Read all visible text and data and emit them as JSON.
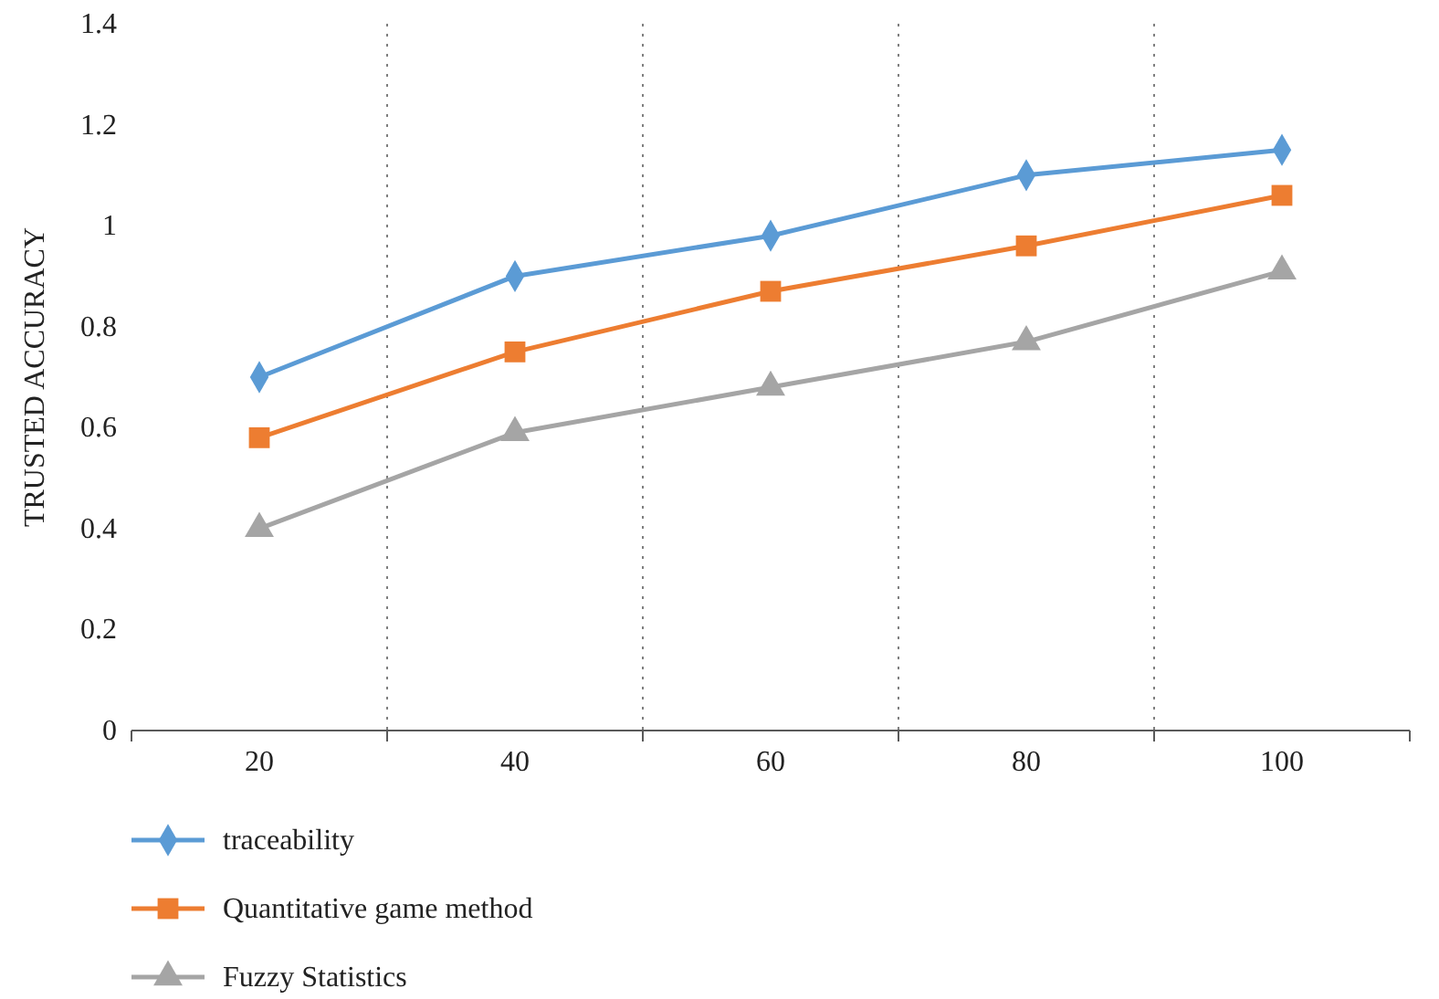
{
  "chart_data": {
    "type": "line",
    "ylabel": "TRUSTED ACCURACY",
    "categories": [
      "20",
      "40",
      "60",
      "80",
      "100"
    ],
    "series": [
      {
        "name": "traceability",
        "color": "#5b9bd5",
        "marker": "diamond",
        "values": [
          0.7,
          0.9,
          0.98,
          1.1,
          1.15
        ]
      },
      {
        "name": "Quantitative game method",
        "color": "#ed7d31",
        "marker": "square",
        "values": [
          0.58,
          0.75,
          0.87,
          0.96,
          1.06
        ]
      },
      {
        "name": "Fuzzy Statistics",
        "color": "#a5a5a5",
        "marker": "triangle",
        "values": [
          0.4,
          0.59,
          0.68,
          0.77,
          0.91
        ]
      }
    ],
    "ylim": [
      0,
      1.4
    ],
    "yticks": [
      0,
      {
        "value": 0.2,
        "label": "0.2"
      },
      {
        "value": 0.4,
        "label": "0.4"
      },
      {
        "value": 0.6,
        "label": "0.6"
      },
      {
        "value": 0.8,
        "label": "0.8"
      },
      1,
      {
        "value": 1.2,
        "label": "1.2"
      },
      {
        "value": 1.4,
        "label": "1.4"
      }
    ],
    "grid": "x",
    "legend": "bottom",
    "line_style": "solid"
  }
}
